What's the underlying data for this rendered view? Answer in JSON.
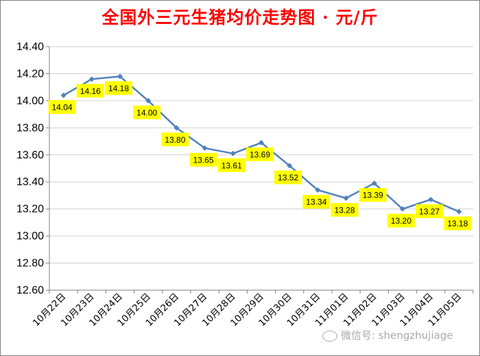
{
  "chart_data": {
    "type": "line",
    "title": "全国外三元生猪均价走势图 · 元/斤",
    "xlabel": "",
    "ylabel": "",
    "categories": [
      "10月22日",
      "10月23日",
      "10月24日",
      "10月25日",
      "10月26日",
      "10月27日",
      "10月28日",
      "10月29日",
      "10月30日",
      "10月31日",
      "11月01日",
      "11月02日",
      "11月03日",
      "11月04日",
      "11月05日"
    ],
    "values": [
      14.04,
      14.16,
      14.18,
      14.0,
      13.8,
      13.65,
      13.61,
      13.69,
      13.52,
      13.34,
      13.28,
      13.39,
      13.2,
      13.27,
      13.18
    ],
    "data_labels": [
      "14.04",
      "14.16",
      "14.18",
      "14.00",
      "13.80",
      "13.65",
      "13.61",
      "13.69",
      "13.52",
      "13.34",
      "13.28",
      "13.39",
      "13.20",
      "13.27",
      "13.18"
    ],
    "yticks": [
      "12.60",
      "12.80",
      "13.00",
      "13.20",
      "13.40",
      "13.60",
      "13.80",
      "14.00",
      "14.20",
      "14.40"
    ],
    "ylim": [
      12.6,
      14.4
    ],
    "grid": true,
    "legend": "none",
    "colors": {
      "line": "#4f81bd",
      "label_bg": "#ffff00",
      "grid": "#d0d0d0",
      "title": "#ff0000"
    }
  },
  "watermark": {
    "text": "微信号: shengzhujiage",
    "icon": "wechat-icon"
  }
}
